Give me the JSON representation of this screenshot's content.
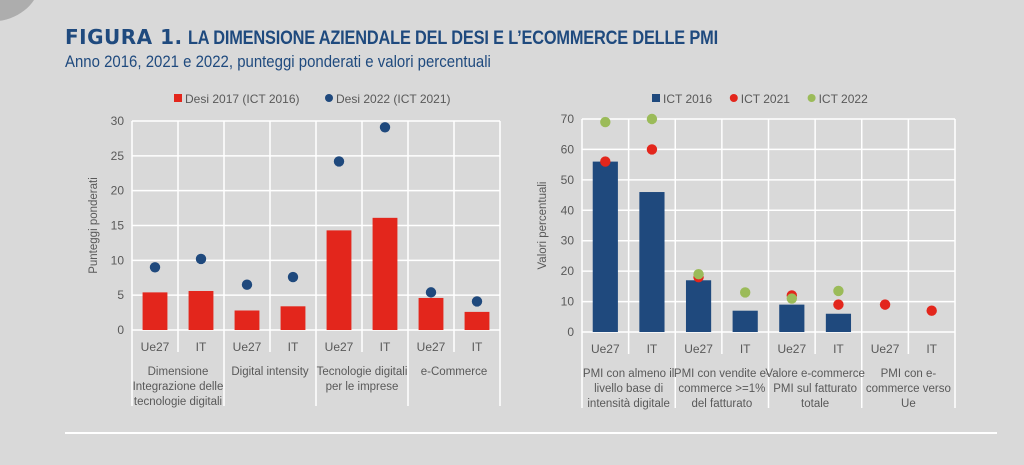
{
  "header": {
    "figure_label": "FIGURA 1.",
    "title": "LA DIMENSIONE AZIENDALE DEL DESI E L’ECOMMERCE DELLE PMI",
    "subtitle": "Anno 2016, 2021 e 2022, punteggi ponderati e valori percentuali"
  },
  "colors": {
    "red": "#e3261c",
    "navy": "#1f497d",
    "green": "#9bbb59",
    "grid": "#ffffff",
    "background": "#d9d9d9",
    "title": "#1f4a7e"
  },
  "chart_data": [
    {
      "type": "bar",
      "ylabel": "Punteggi ponderati",
      "ylim": [
        0,
        30
      ],
      "yticks": [
        "0",
        "5",
        "10",
        "15",
        "20",
        "25",
        "30"
      ],
      "ytick_values": [
        0,
        5,
        10,
        15,
        20,
        25,
        30
      ],
      "grid": true,
      "legend_position": "top",
      "categories": [
        "Ue27",
        "IT",
        "Ue27",
        "IT",
        "Ue27",
        "IT",
        "Ue27",
        "IT"
      ],
      "groups": [
        {
          "label": [
            "Dimensione",
            "Integrazione delle",
            "tecnologie digitali"
          ]
        },
        {
          "label": [
            "Digital intensity"
          ]
        },
        {
          "label": [
            "Tecnologie digitali",
            "per le imprese"
          ]
        },
        {
          "label": [
            "e-Commerce"
          ]
        }
      ],
      "series": [
        {
          "name": "Desi 2017 (ICT 2016)",
          "kind": "bar",
          "color": "#e3261c",
          "values": [
            5.4,
            5.6,
            2.8,
            3.4,
            14.3,
            16.1,
            4.6,
            2.6
          ]
        },
        {
          "name": "Desi 2022 (ICT 2021)",
          "kind": "dot",
          "color": "#1f497d",
          "values": [
            9.0,
            10.2,
            6.5,
            7.6,
            24.2,
            29.1,
            5.4,
            4.1
          ]
        }
      ]
    },
    {
      "type": "bar",
      "ylabel": "Valori percentuali",
      "ylim": [
        0,
        70
      ],
      "yticks": [
        "0",
        "10",
        "20",
        "30",
        "40",
        "50",
        "60",
        "70"
      ],
      "ytick_values": [
        0,
        10,
        20,
        30,
        40,
        50,
        60,
        70
      ],
      "grid": true,
      "legend_position": "top",
      "categories": [
        "Ue27",
        "IT",
        "Ue27",
        "IT",
        "Ue27",
        "IT",
        "Ue27",
        "IT"
      ],
      "groups": [
        {
          "label": [
            "PMI con almeno il",
            "livello base di",
            "intensità digitale"
          ]
        },
        {
          "label": [
            "PMI con vendite e-",
            "commerce >=1%",
            "del fatturato"
          ]
        },
        {
          "label": [
            "Valore e-commerce",
            "PMI sul fatturato",
            "totale"
          ]
        },
        {
          "label": [
            "PMI con e-",
            "commerce verso",
            "Ue"
          ]
        }
      ],
      "series": [
        {
          "name": "ICT 2016",
          "kind": "bar",
          "color": "#1f497d",
          "values": [
            56,
            46,
            17,
            7,
            9,
            6,
            null,
            null
          ]
        },
        {
          "name": "ICT 2021",
          "kind": "dot",
          "color": "#e3261c",
          "values": [
            56,
            60,
            18,
            null,
            12,
            9,
            9,
            7
          ]
        },
        {
          "name": "ICT 2022",
          "kind": "dot",
          "color": "#9bbb59",
          "values": [
            69,
            70,
            19,
            13,
            11,
            13.5,
            null,
            null
          ]
        }
      ]
    }
  ]
}
